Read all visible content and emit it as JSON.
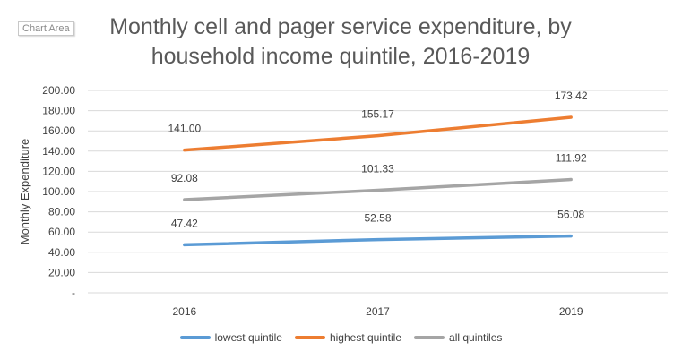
{
  "area_tag": "Chart Area",
  "colors": {
    "lowest": "#5B9BD5",
    "highest": "#ED7D31",
    "all": "#A5A5A5",
    "grid": "#d9d9d9",
    "text": "#404040"
  },
  "chart_data": {
    "type": "line",
    "title": "Monthly cell and pager service expenditure, by household income quintile, 2016-2019",
    "xlabel": "",
    "ylabel": "Monthly Expenditure",
    "categories": [
      "2016",
      "2017",
      "2019"
    ],
    "ylim": [
      0,
      200
    ],
    "yticks": [
      "-",
      "20.00",
      "40.00",
      "60.00",
      "80.00",
      "100.00",
      "120.00",
      "140.00",
      "160.00",
      "180.00",
      "200.00"
    ],
    "grid": true,
    "legend_position": "bottom",
    "series": [
      {
        "name": "lowest quintile",
        "values": [
          47.42,
          52.58,
          56.08
        ],
        "labels": [
          "47.42",
          "52.58",
          "56.08"
        ]
      },
      {
        "name": "highest quintile",
        "values": [
          141.0,
          155.17,
          173.42
        ],
        "labels": [
          "141.00",
          "155.17",
          "173.42"
        ]
      },
      {
        "name": "all quintiles",
        "values": [
          92.08,
          101.33,
          111.92
        ],
        "labels": [
          "92.08",
          "101.33",
          "111.92"
        ]
      }
    ]
  }
}
